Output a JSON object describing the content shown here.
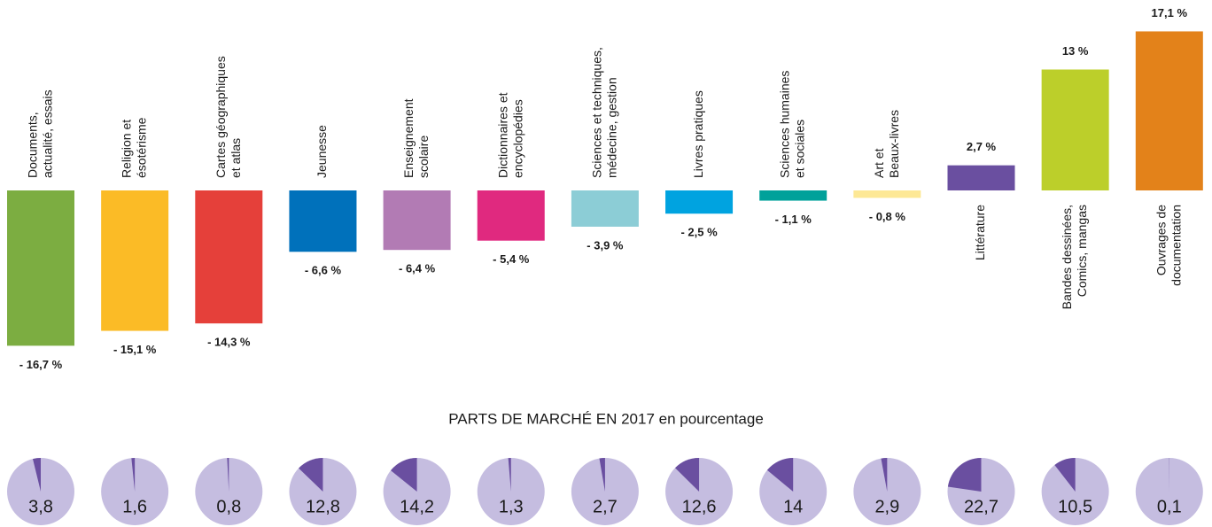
{
  "chart_data": [
    {
      "type": "bar",
      "categories": [
        "Documents,\nactualité, essais",
        "Religion et\nésotérisme",
        "Cartes géographiques\net atlas",
        "Jeunesse",
        "Enseignement\nscolaire",
        "Dictionnaires et\nencyclopédies",
        "Sciences et techniques,\nmédecine, gestion",
        "Livres pratiques",
        "Sciences humaines\net sociales",
        "Art et\nBeaux-livres",
        "Littérature",
        "Bandes dessinées,\nComics, mangas",
        "Ouvrages de\ndocumentation"
      ],
      "values": [
        -16.7,
        -15.1,
        -14.3,
        -6.6,
        -6.4,
        -5.4,
        -3.9,
        -2.5,
        -1.1,
        -0.8,
        2.7,
        13,
        17.1
      ],
      "value_labels": [
        "- 16,7 %",
        "- 15,1 %",
        "- 14,3 %",
        "- 6,6 %",
        "- 6,4 %",
        "- 5,4 %",
        "- 3,9 %",
        "- 2,5 %",
        "- 1,1 %",
        "- 0,8 %",
        "2,7 %",
        "13 %",
        "17,1 %"
      ],
      "colors": [
        "#7cad41",
        "#fbbb26",
        "#e5403a",
        "#0071bb",
        "#b27bb4",
        "#e0297f",
        "#8ccdd6",
        "#00a3e0",
        "#00a19a",
        "#fde895",
        "#6a4fa0",
        "#bccf2a",
        "#e3821a"
      ],
      "ylim": [
        -18,
        19
      ]
    },
    {
      "type": "pie",
      "title": "PARTS DE MARCHÉ EN 2017 en pourcentage",
      "values": [
        3.8,
        1.6,
        0.8,
        12.8,
        14.2,
        1.3,
        2.7,
        12.6,
        14,
        2.9,
        22.7,
        10.5,
        0.1
      ],
      "value_labels": [
        "3,8",
        "1,6",
        "0,8",
        "12,8",
        "14,2",
        "1,3",
        "2,7",
        "12,6",
        "14",
        "2,9",
        "22,7",
        "10,5",
        "0,1"
      ],
      "total": 100,
      "color": "#6a4fa0",
      "background_color": "#c5bde0"
    }
  ]
}
